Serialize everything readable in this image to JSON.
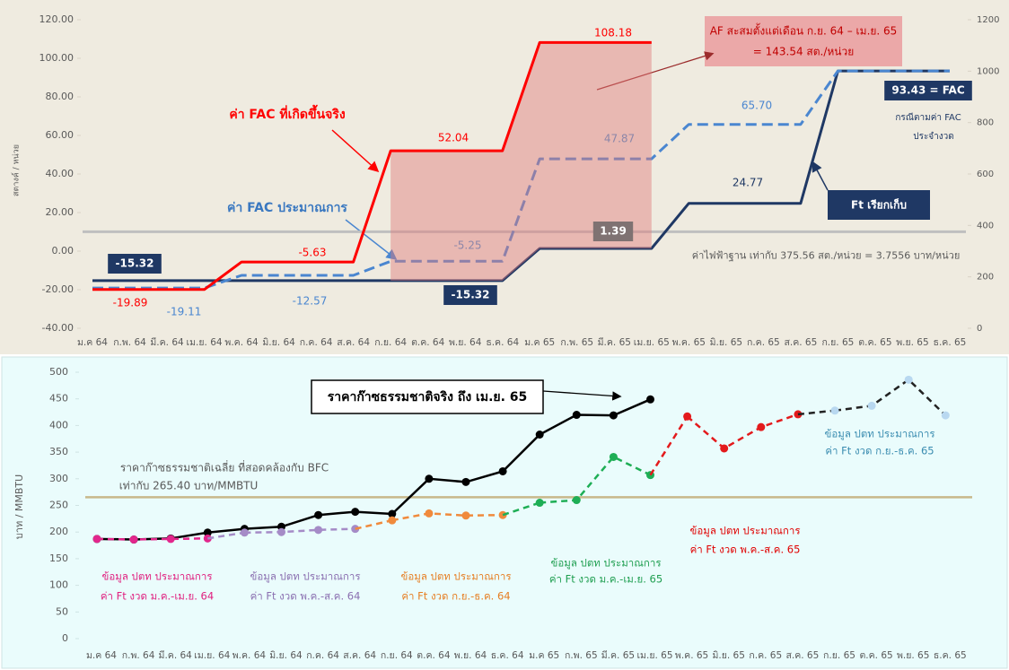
{
  "chart_data": [
    {
      "type": "line",
      "y_label": "สตางค์ / หน่วย",
      "categories": [
        "ม.ค 64",
        "ก.พ. 64",
        "มี.ค. 64",
        "เม.ย. 64",
        "พ.ค. 64",
        "มิ.ย. 64",
        "ก.ค. 64",
        "ส.ค. 64",
        "ก.ย. 64",
        "ต.ค. 64",
        "พ.ย. 64",
        "ธ.ค. 64",
        "ม.ค 65",
        "ก.พ. 65",
        "มี.ค. 65",
        "เม.ย. 65",
        "พ.ค. 65",
        "มิ.ย. 65",
        "ก.ค. 65",
        "ส.ค. 65",
        "ก.ย. 65",
        "ต.ค. 65",
        "พ.ย. 65",
        "ธ.ค. 65"
      ],
      "ylim": [
        -40,
        120
      ],
      "yticks": [
        {
          "value": -40,
          "label": "-40.00"
        },
        {
          "value": -20,
          "label": "-20.00"
        },
        {
          "value": 0,
          "label": "0.00"
        },
        {
          "value": 20,
          "label": "20.00"
        },
        {
          "value": 40,
          "label": "40.00"
        },
        {
          "value": 60,
          "label": "60.00"
        },
        {
          "value": 80,
          "label": "80.00"
        },
        {
          "value": 100,
          "label": "100.00"
        },
        {
          "value": 120,
          "label": "120.00"
        }
      ],
      "y2lim": [
        0,
        1200
      ],
      "y2ticks": [
        0,
        200,
        400,
        600,
        800,
        1000,
        1200
      ],
      "series": [
        {
          "name": "ค่า FAC ที่เกิดขึ้นจริง",
          "color": "#ff0000",
          "line": "solid",
          "values": [
            -19.89,
            -19.89,
            -19.89,
            -19.89,
            -5.63,
            -5.63,
            -5.63,
            -5.63,
            52.04,
            52.04,
            52.04,
            52.04,
            108.18,
            108.18,
            108.18,
            108.18,
            null,
            null,
            null,
            null,
            null,
            null,
            null,
            null
          ],
          "value_labels": [
            null,
            "-19.89",
            null,
            null,
            null,
            null,
            "-5.63",
            null,
            null,
            null,
            "52.04",
            null,
            null,
            null,
            "108.18",
            null,
            null,
            null,
            null,
            null,
            null,
            null,
            null,
            null
          ]
        },
        {
          "name": "ค่า FAC ประมาณการ",
          "color": "#4a86d0",
          "line": "dashed",
          "values": [
            -19.11,
            -19.11,
            -19.11,
            -19.11,
            -12.57,
            -12.57,
            -12.57,
            -12.57,
            -5.25,
            -5.25,
            -5.25,
            -5.25,
            47.87,
            47.87,
            47.87,
            47.87,
            65.7,
            65.7,
            65.7,
            65.7,
            93.43,
            93.43,
            93.43,
            93.43
          ],
          "value_labels": [
            null,
            null,
            "-19.11",
            null,
            null,
            null,
            "-12.57",
            null,
            null,
            null,
            "-5.25",
            null,
            null,
            null,
            "47.87",
            null,
            null,
            null,
            "65.70",
            null,
            null,
            null,
            null,
            null
          ]
        },
        {
          "name": "Ft เรียกเก็บ",
          "color": "#1f3864",
          "line": "solid",
          "values": [
            -15.32,
            -15.32,
            -15.32,
            -15.32,
            -15.32,
            -15.32,
            -15.32,
            -15.32,
            -15.32,
            -15.32,
            -15.32,
            -15.32,
            1.39,
            1.39,
            1.39,
            1.39,
            24.77,
            24.77,
            24.77,
            24.77,
            93.43,
            93.43,
            93.43,
            93.43
          ],
          "value_labels": [
            "-15.32",
            null,
            null,
            null,
            null,
            null,
            null,
            null,
            null,
            null,
            "-15.32",
            null,
            null,
            null,
            "1.39",
            null,
            null,
            null,
            "24.77",
            null,
            null,
            null,
            "93.43 = FAC",
            null
          ]
        }
      ],
      "base_line": {
        "value": 375.56,
        "axis": "y2",
        "color": "#bfbfbf",
        "label": "ค่าไฟฟ้าฐาน เท่ากับ 375.56 สต./หน่วย = 3.7556 บาท/หน่วย"
      },
      "shaded": {
        "color": "#e07a7a",
        "between_series": [
          0,
          2
        ],
        "start": 8,
        "end": 15
      },
      "af_note": [
        "AF สะสมตั้งแต่เดือน ก.ย. 64 – เม.ย. 65",
        "= 143.54 สต./หน่วย"
      ],
      "ft_note": [
        "กรณีตามค่า FAC",
        "ประจำงวด"
      ]
    },
    {
      "type": "line",
      "y_label": "บาท / MMBTU",
      "categories": [
        "ม.ค 64",
        "ก.พ. 64",
        "มี.ค. 64",
        "เม.ย. 64",
        "พ.ค. 64",
        "มิ.ย. 64",
        "ก.ค. 64",
        "ส.ค. 64",
        "ก.ย. 64",
        "ต.ค. 64",
        "พ.ย. 64",
        "ธ.ค. 64",
        "ม.ค 65",
        "ก.พ. 65",
        "มี.ค. 65",
        "เม.ย. 65",
        "พ.ค. 65",
        "มิ.ย. 65",
        "ก.ค. 65",
        "ส.ค. 65",
        "ก.ย. 65",
        "ต.ค. 65",
        "พ.ย. 65",
        "ธ.ค. 65"
      ],
      "ylim": [
        0,
        500
      ],
      "yticks": [
        0,
        50,
        100,
        150,
        200,
        250,
        300,
        350,
        400,
        450,
        500
      ],
      "reference": {
        "value": 265.4,
        "color": "#c8b88a",
        "label": [
          "ราคาก๊าซธรรมชาติเฉลี่ย ที่สอดคล้องกับ BFC",
          "เท่ากับ 265.40 บาท/MMBTU"
        ]
      },
      "callout": "ราคาก๊าซธรรมชาติจริง ถึง เม.ย. 65",
      "series": [
        {
          "color": "#000000",
          "line_color": "#000000",
          "line": "solid",
          "values": [
            187,
            186,
            188,
            199,
            206,
            210,
            232,
            238,
            234,
            300,
            294,
            314,
            383,
            420,
            419,
            449,
            null,
            null,
            null,
            null,
            null,
            null,
            null,
            null
          ]
        },
        {
          "color": "#e2268c",
          "line_color": "#e2268c",
          "line": "dashed",
          "values": [
            187,
            186,
            187,
            188,
            null,
            null,
            null,
            null,
            null,
            null,
            null,
            null,
            null,
            null,
            null,
            null,
            null,
            null,
            null,
            null,
            null,
            null,
            null,
            null
          ],
          "note": [
            "ข้อมูล ปตท ประมาณการ",
            "ค่า Ft งวด ม.ค.-เม.ย. 64"
          ]
        },
        {
          "color": "#a58bc7",
          "line_color": "#a58bc7",
          "line": "dashed",
          "values": [
            null,
            null,
            null,
            null,
            199,
            200,
            204,
            206,
            null,
            null,
            null,
            null,
            null,
            null,
            null,
            null,
            null,
            null,
            null,
            null,
            null,
            null,
            null,
            null
          ],
          "note": [
            "ข้อมูล ปตท ประมาณการ",
            "ค่า Ft งวด พ.ค.-ส.ค. 64"
          ]
        },
        {
          "color": "#f08a3c",
          "line_color": "#f08a3c",
          "line": "dashed",
          "values": [
            null,
            null,
            null,
            null,
            null,
            null,
            null,
            null,
            222,
            235,
            231,
            232,
            null,
            null,
            null,
            null,
            null,
            null,
            null,
            null,
            null,
            null,
            null,
            null
          ],
          "note": [
            "ข้อมูล ปตท ประมาณการ",
            "ค่า Ft งวด ก.ย.-ธ.ค. 64"
          ]
        },
        {
          "color": "#1eae55",
          "line_color": "#1eae55",
          "line": "dashed",
          "values": [
            null,
            null,
            null,
            null,
            null,
            null,
            null,
            null,
            null,
            null,
            null,
            null,
            255,
            260,
            341,
            307,
            null,
            null,
            null,
            null,
            null,
            null,
            null,
            null
          ],
          "note": [
            "ข้อมูล ปตท ประมาณการ",
            "ค่า Ft งวด ม.ค.-เม.ย. 65"
          ]
        },
        {
          "color": "#e31a1c",
          "line_color": "#e31a1c",
          "line": "dashed",
          "values": [
            null,
            null,
            null,
            null,
            null,
            null,
            null,
            null,
            null,
            null,
            null,
            null,
            null,
            null,
            null,
            null,
            417,
            357,
            397,
            421,
            null,
            null,
            null,
            null
          ],
          "note": [
            "ข้อมูล ปตท ประมาณการ",
            "ค่า Ft งวด พ.ค.-ส.ค. 65"
          ]
        },
        {
          "color": "#b8d8f0",
          "line_color": "#222222",
          "line": "dashed",
          "values": [
            null,
            null,
            null,
            null,
            null,
            null,
            null,
            null,
            null,
            null,
            null,
            null,
            null,
            null,
            null,
            null,
            null,
            null,
            null,
            null,
            428,
            437,
            486,
            419
          ],
          "note": [
            "ข้อมูล ปตท ประมาณการ",
            "ค่า Ft งวด ก.ย.-ธ.ค. 65"
          ]
        }
      ]
    }
  ]
}
